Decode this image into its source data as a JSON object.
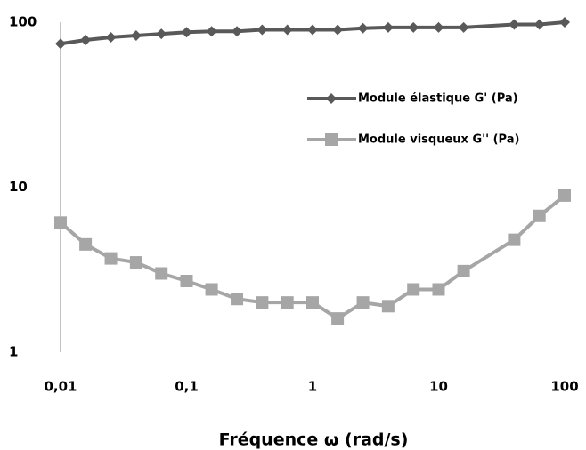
{
  "chart_data": {
    "type": "line",
    "x_label": "Fréquence ω  (rad/s)",
    "x": [
      0.01,
      0.0158,
      0.0251,
      0.0398,
      0.0631,
      0.1,
      0.158,
      0.251,
      0.398,
      0.631,
      1,
      1.58,
      2.51,
      3.98,
      6.31,
      10,
      15.8,
      39.8,
      63.1,
      100
    ],
    "series": [
      {
        "name": "Module élastique G' (Pa)",
        "color": "#595959",
        "marker": "diamond",
        "values": [
          74,
          78,
          81,
          83,
          85,
          87,
          88,
          88,
          90,
          90,
          90,
          90,
          92,
          93,
          93,
          93,
          93,
          97,
          97,
          100
        ]
      },
      {
        "name": "Module visqueux G'' (Pa)",
        "color": "#a6a6a6",
        "marker": "square",
        "values": [
          6.1,
          4.5,
          3.7,
          3.5,
          3.0,
          2.7,
          2.4,
          2.1,
          2.0,
          2.0,
          2.0,
          1.6,
          2.0,
          1.9,
          2.4,
          2.4,
          3.1,
          4.8,
          6.7,
          8.9
        ]
      }
    ],
    "xscale": "log",
    "yscale": "log",
    "xlim": [
      0.01,
      100
    ],
    "ylim": [
      1,
      100
    ],
    "xticks": [
      {
        "value": 0.01,
        "label": "0,01"
      },
      {
        "value": 0.1,
        "label": "0,1"
      },
      1,
      10,
      100
    ],
    "yticks": [
      1,
      10,
      100
    ],
    "legend": "upper right"
  }
}
